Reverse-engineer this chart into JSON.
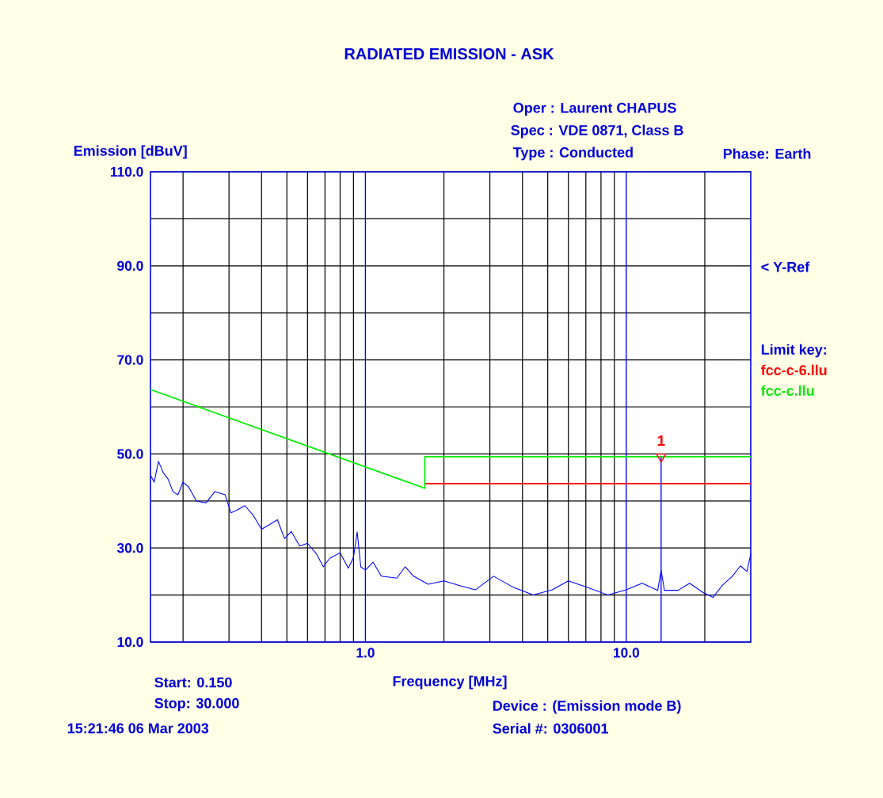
{
  "chart_data": {
    "type": "line",
    "title": "RADIATED EMISSION - ASK",
    "xlabel": "Frequency [MHz]",
    "ylabel": "Emission [dBuV]",
    "legend_title": "Limit key:",
    "log": "x",
    "grid": true,
    "legend": "right",
    "xlim": [
      0.15,
      30
    ],
    "ylim": [
      10,
      110
    ],
    "xticks": [
      {
        "value": 0.2,
        "label": null
      },
      {
        "value": 0.3,
        "label": null
      },
      {
        "value": 0.4,
        "label": null
      },
      {
        "value": 0.5,
        "label": null
      },
      {
        "value": 0.6,
        "label": null
      },
      {
        "value": 0.7,
        "label": null
      },
      {
        "value": 0.8,
        "label": null
      },
      {
        "value": 0.9,
        "label": null
      },
      {
        "value": 1,
        "label": "1.0"
      },
      {
        "value": 2,
        "label": null
      },
      {
        "value": 3,
        "label": null
      },
      {
        "value": 4,
        "label": null
      },
      {
        "value": 5,
        "label": null
      },
      {
        "value": 6,
        "label": null
      },
      {
        "value": 7,
        "label": null
      },
      {
        "value": 8,
        "label": null
      },
      {
        "value": 9,
        "label": null
      },
      {
        "value": 10,
        "label": "10.0"
      },
      {
        "value": 20,
        "label": null
      }
    ],
    "yticks": [
      {
        "value": 10,
        "label": "10.0"
      },
      {
        "value": 20,
        "label": null
      },
      {
        "value": 30,
        "label": "30.0"
      },
      {
        "value": 40,
        "label": null
      },
      {
        "value": 50,
        "label": "50.0"
      },
      {
        "value": 60,
        "label": null
      },
      {
        "value": 70,
        "label": "70.0"
      },
      {
        "value": 80,
        "label": null
      },
      {
        "value": 90,
        "label": "90.0"
      },
      {
        "value": 100,
        "label": null
      },
      {
        "value": 110,
        "label": "110.0"
      }
    ],
    "series": [
      {
        "color": "#0000ff",
        "x": [
          0.15,
          0.155,
          0.161,
          0.168,
          0.175,
          0.183,
          0.191,
          0.2,
          0.21,
          0.225,
          0.245,
          0.265,
          0.29,
          0.305,
          0.32,
          0.345,
          0.37,
          0.4,
          0.43,
          0.46,
          0.49,
          0.52,
          0.56,
          0.6,
          0.65,
          0.69,
          0.73,
          0.8,
          0.86,
          0.9,
          0.93,
          0.96,
          1.0,
          1.07,
          1.15,
          1.32,
          1.42,
          1.53,
          1.74,
          2.0,
          2.3,
          2.64,
          3.1,
          3.7,
          4.4,
          5.2,
          6.0,
          7.1,
          8.5,
          10,
          11.5,
          13.2,
          13.6,
          14.0,
          15.8,
          17.5,
          19.6,
          21.5,
          23.3,
          25.5,
          27.4,
          29,
          30
        ],
        "values": [
          45.5,
          44,
          48.4,
          46,
          44.7,
          42,
          41.3,
          44,
          43,
          40,
          39.6,
          42,
          41.3,
          37.5,
          38,
          39,
          37.1,
          34,
          35,
          36,
          32,
          33.5,
          30.4,
          31,
          28.7,
          26,
          27.8,
          29,
          25.7,
          28,
          33.4,
          26,
          25.3,
          27,
          24,
          23.6,
          26,
          24,
          22.3,
          23,
          22,
          21.1,
          24,
          21.6,
          20,
          21.1,
          23,
          21.6,
          20,
          21.1,
          22.5,
          21,
          25.3,
          21,
          21,
          22.5,
          20.6,
          19.5,
          22,
          24,
          26.2,
          25,
          28.7
        ]
      },
      {
        "name": "fcc-c-6.llu",
        "color": "#ff0000",
        "x": [
          1.69,
          30
        ],
        "values": [
          43.7,
          43.7
        ]
      },
      {
        "name": "fcc-c.llu",
        "color": "#00ee00",
        "x": [
          0.15,
          1.69,
          1.69,
          30
        ],
        "values": [
          63.7,
          42.7,
          49.4,
          49.4
        ]
      },
      {
        "type": "scatter",
        "marker": "triangle",
        "color": "#ff0000",
        "x": [
          13.6
        ],
        "values": [
          49.4
        ]
      }
    ],
    "ref_lines": [
      {
        "axis": "x",
        "value": 13.6,
        "color": "#0000ff"
      }
    ],
    "annotations": [
      "< Y-Ref",
      {
        "text": "1",
        "x": 13.6,
        "y": 49.4
      },
      "Oper : Laurent CHAPUS",
      "Spec : VDE 0871, Class B",
      "Type : Conducted",
      "Phase: Earth",
      "Start: 0.150",
      "Stop: 30.000",
      "15:21:46 06 Mar 2003",
      "Device : (Emission mode B)",
      "Serial #: 0306001"
    ]
  }
}
